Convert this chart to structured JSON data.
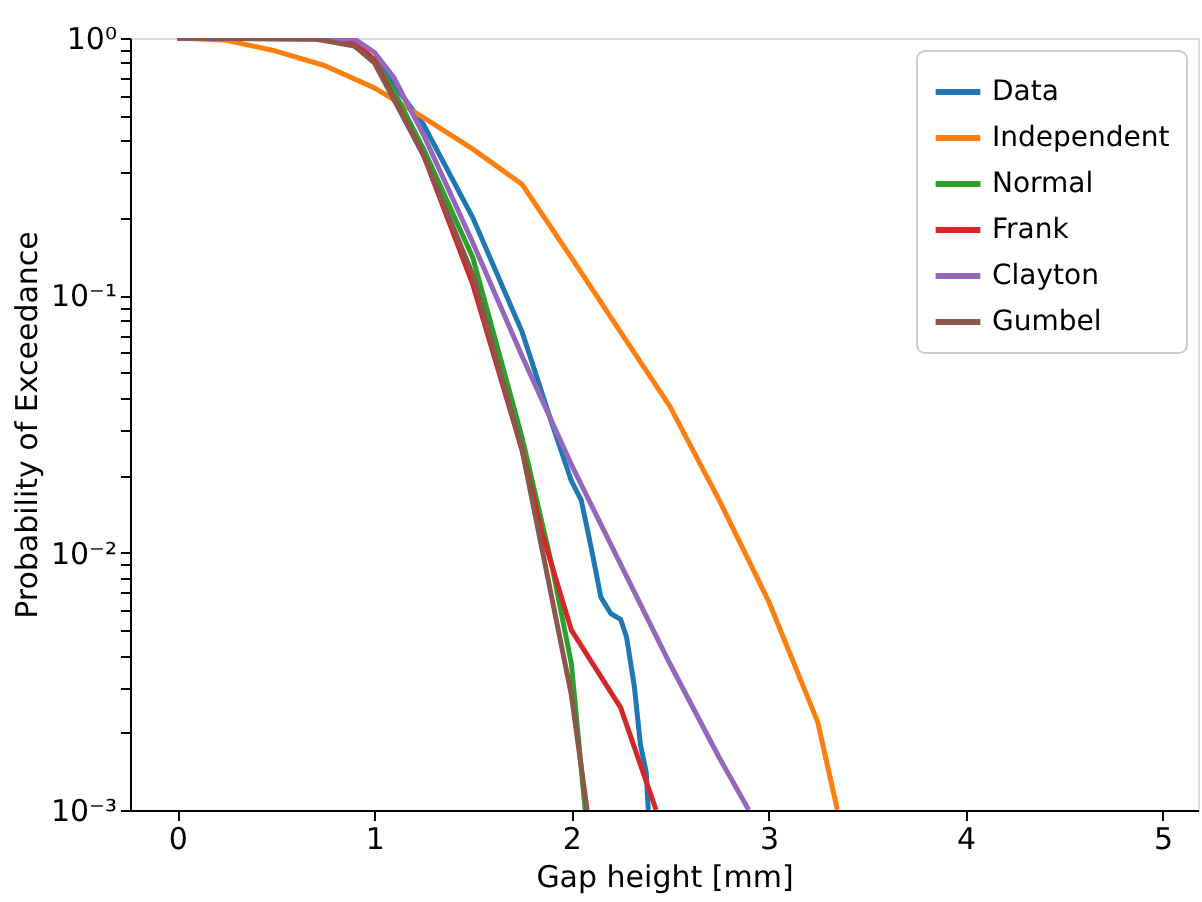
{
  "chart_data": {
    "type": "line",
    "xlabel": "Gap height [mm]",
    "ylabel": "Probability of Exceedance",
    "log": "y",
    "grid": false,
    "legend": "top right",
    "xlim": [
      -0.24,
      5.18
    ],
    "xticks": [
      0,
      1,
      2,
      3,
      4,
      5
    ],
    "ylim": [
      0.001,
      1
    ],
    "yticks": [
      {
        "value": 0.001,
        "label": "10⁻³"
      },
      {
        "value": 0.002,
        "label": null
      },
      {
        "value": 0.003,
        "label": null
      },
      {
        "value": 0.004,
        "label": null
      },
      {
        "value": 0.005,
        "label": null
      },
      {
        "value": 0.006,
        "label": null
      },
      {
        "value": 0.007,
        "label": null
      },
      {
        "value": 0.008,
        "label": null
      },
      {
        "value": 0.009,
        "label": null
      },
      {
        "value": 0.01,
        "label": "10⁻²"
      },
      {
        "value": 0.02,
        "label": null
      },
      {
        "value": 0.03,
        "label": null
      },
      {
        "value": 0.04,
        "label": null
      },
      {
        "value": 0.05,
        "label": null
      },
      {
        "value": 0.06,
        "label": null
      },
      {
        "value": 0.07,
        "label": null
      },
      {
        "value": 0.08,
        "label": null
      },
      {
        "value": 0.09,
        "label": null
      },
      {
        "value": 0.1,
        "label": "10⁻¹"
      },
      {
        "value": 0.2,
        "label": null
      },
      {
        "value": 0.3,
        "label": null
      },
      {
        "value": 0.4,
        "label": null
      },
      {
        "value": 0.5,
        "label": null
      },
      {
        "value": 0.6,
        "label": null
      },
      {
        "value": 0.7,
        "label": null
      },
      {
        "value": 0.8,
        "label": null
      },
      {
        "value": 0.9,
        "label": null
      },
      {
        "value": 1,
        "label": "10⁰"
      }
    ],
    "series": [
      {
        "name": "Data",
        "color": "#1f77b4",
        "x": [
          1.0,
          1.1,
          1.25,
          1.5,
          1.75,
          1.9,
          2.0,
          2.05,
          2.1,
          2.15,
          2.2,
          2.25,
          2.28,
          2.32,
          2.35,
          2.38,
          2.39
        ],
        "values": [
          0.85,
          0.66,
          0.46,
          0.2,
          0.072,
          0.032,
          0.019,
          0.016,
          0.0105,
          0.0067,
          0.0058,
          0.0055,
          0.0047,
          0.003,
          0.0018,
          0.0014,
          0.001
        ]
      },
      {
        "name": "Independent",
        "color": "#ff7f0e",
        "x": [
          0,
          0.25,
          0.5,
          0.75,
          1.0,
          1.25,
          1.5,
          1.75,
          2.0,
          2.25,
          2.5,
          2.75,
          3.0,
          3.25,
          3.35
        ],
        "values": [
          1,
          0.98,
          0.89,
          0.78,
          0.64,
          0.49,
          0.37,
          0.27,
          0.14,
          0.072,
          0.037,
          0.016,
          0.0065,
          0.0022,
          0.001
        ]
      },
      {
        "name": "Normal",
        "color": "#2ca02c",
        "x": [
          0,
          0.85,
          1.0,
          1.1,
          1.25,
          1.5,
          1.75,
          1.9,
          2.0,
          2.07
        ],
        "values": [
          1,
          0.99,
          0.82,
          0.62,
          0.37,
          0.14,
          0.028,
          0.009,
          0.0037,
          0.001
        ]
      },
      {
        "name": "Frank",
        "color": "#d62728",
        "x": [
          0,
          0.8,
          0.9,
          1.0,
          1.25,
          1.5,
          1.75,
          1.85,
          2.0,
          2.25,
          2.43
        ],
        "values": [
          1,
          0.99,
          0.97,
          0.82,
          0.35,
          0.11,
          0.025,
          0.012,
          0.005,
          0.0025,
          0.001
        ]
      },
      {
        "name": "Clayton",
        "color": "#9467bd",
        "x": [
          0,
          0.9,
          1.0,
          1.1,
          1.25,
          1.5,
          1.75,
          2.0,
          2.25,
          2.5,
          2.75,
          2.9
        ],
        "values": [
          1,
          0.99,
          0.88,
          0.7,
          0.42,
          0.16,
          0.058,
          0.022,
          0.009,
          0.0037,
          0.0016,
          0.001
        ]
      },
      {
        "name": "Gumbel",
        "color": "#8c564b",
        "x": [
          0,
          0.7,
          0.9,
          1.0,
          1.25,
          1.5,
          1.75,
          2.0,
          2.08
        ],
        "values": [
          1,
          0.99,
          0.93,
          0.8,
          0.35,
          0.12,
          0.025,
          0.0028,
          0.001
        ]
      }
    ]
  }
}
